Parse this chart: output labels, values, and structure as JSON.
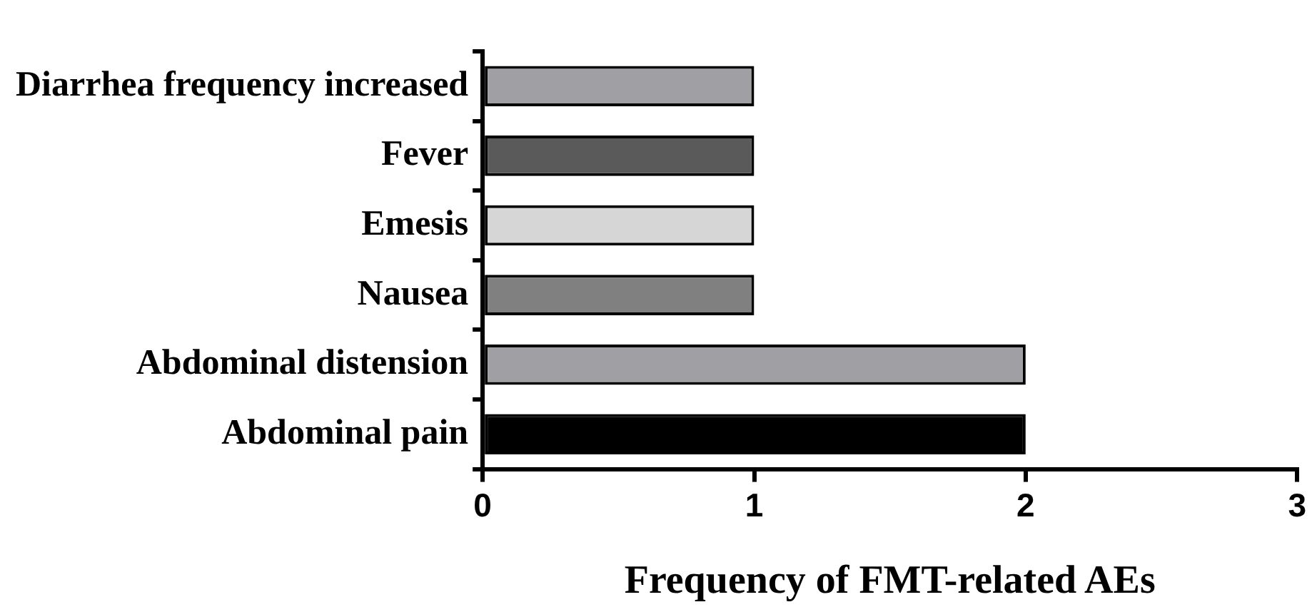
{
  "chart_data": {
    "type": "bar",
    "orientation": "horizontal",
    "xlabel": "Frequency of FMT-related AEs",
    "categories": [
      "Diarrhea frequency increased",
      "Fever",
      "Emesis",
      "Nausea",
      "Abdominal distension",
      "Abdominal pain"
    ],
    "values": [
      1,
      1,
      1,
      1,
      2,
      2
    ],
    "colors": [
      "#a0a0a4",
      "#5a5a5a",
      "#d6d6d6",
      "#808080",
      "#a0a0a4",
      "#000000"
    ],
    "xlim": [
      0,
      3
    ],
    "xticks": [
      0,
      1,
      2,
      3
    ],
    "grid": false,
    "legend": false
  }
}
